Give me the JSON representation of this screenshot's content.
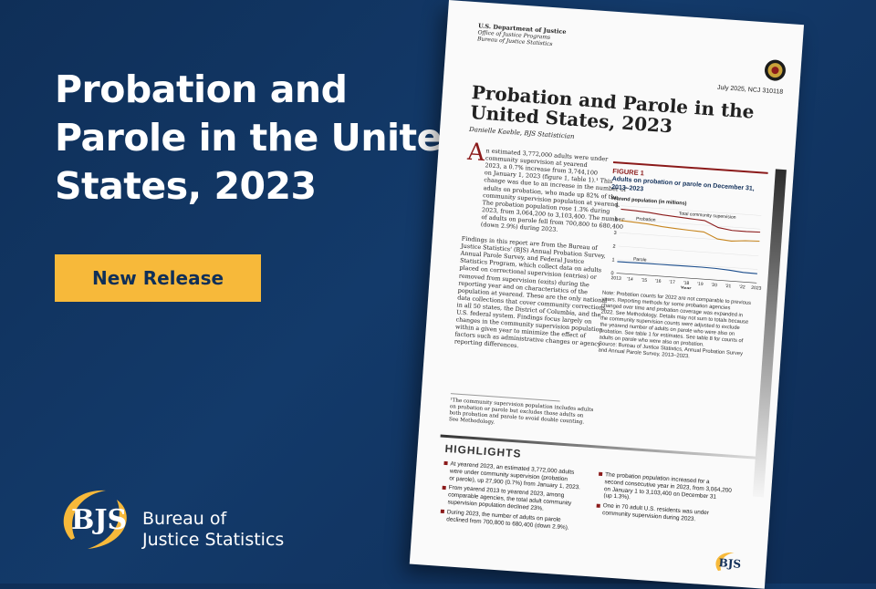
{
  "banner": {
    "headline_lines": [
      "Probation and",
      "Parole in the United",
      "States, 2023"
    ],
    "button_label": "New Release",
    "logo_text": "BJS",
    "logo_name_lines": [
      "Bureau of",
      "Justice Statistics"
    ]
  },
  "document": {
    "agency": "U.S. Department of Justice",
    "agency_sub": "Office of Justice Programs",
    "agency_sub2": "Bureau of Justice Statistics",
    "date_code": "July 2025, NCJ 310118",
    "title_lines": [
      "Probation and Parole in the",
      "United States, 2023"
    ],
    "author": "Danielle Kaeble, BJS Statistician",
    "dropcap": "A",
    "intro_lines": [
      "n estimated 3,772,000 adults were under",
      "community supervision at yearend",
      "2023, a 0.7% increase from 3,744,100",
      "on January 1, 2023 (figure 1, table 1).¹ This",
      "change was due to an increase in the number of",
      "adults on probation, who made up 82% of the",
      "community supervision population at yearend.",
      "The probation population rose 1.3% during",
      "2023, from 3,064,200 to 3,103,400. The number",
      "of adults on parole fell from 700,800 to 680,400",
      "(down 2.9%) during 2023."
    ],
    "findings_lines": [
      "Findings in this report are from the Bureau of",
      "Justice Statistics' (BJS) Annual Probation Survey,",
      "Annual Parole Survey, and Federal Justice",
      "Statistics Program, which collect data on adults",
      "placed on correctional supervision (entries) or",
      "removed from supervision (exits) during the",
      "reporting year and on characteristics of the",
      "population at yearend. These are the only national",
      "data collections that cover community corrections",
      "in all 50 states, the District of Columbia, and the",
      "U.S. federal system. Findings focus largely on",
      "changes in the community supervision population",
      "within a given year to minimize the effect of",
      "factors such as administrative changes or agency",
      "reporting differences."
    ],
    "footnote_lines": [
      "¹The community supervision population includes adults",
      "on probation or parole but excludes those adults on",
      "both probation and parole to avoid double counting.",
      "See Methodology."
    ],
    "figure_label": "FIGURE 1",
    "figure_title_lines": [
      "Adults on probation or parole on December 31,",
      "2013–2023"
    ],
    "note_lines": [
      "Note: Probation counts for 2022 are not comparable to previous",
      "years. Reporting methods for some probation agencies",
      "changed over time and probation coverage was expanded in",
      "2022. See Methodology. Details may not sum to totals because",
      "the community supervision counts were adjusted to exclude",
      "the yearend number of adults on parole who were also on",
      "probation. See table 1 for estimates. See table 8 for counts of",
      "adults on parole who were also on probation.",
      "Source: Bureau of Justice Statistics, Annual Probation Survey",
      "and Annual Parole Survey, 2013–2023."
    ],
    "highlights_title": "HIGHLIGHTS",
    "highlights_left": [
      [
        "At yearend 2023, an estimated 3,772,000 adults",
        "were under community supervision (probation",
        "or parole), up 27,900 (0.7%) from January 1, 2023."
      ],
      [
        "From yearend 2013 to yearend 2023, among",
        "comparable agencies, the total adult community",
        "supervision population declined 23%."
      ],
      [
        "During 2023, the number of adults on parole",
        "declined from 700,800 to 680,400 (down 2.9%)."
      ]
    ],
    "highlights_right": [
      [
        "The probation population increased for a",
        "second consecutive year in 2023, from 3,064,200",
        "on January 1 to 3,103,400 on December 31",
        "(up 1.3%)."
      ],
      [
        "One in 70 adult U.S. residents was under",
        "community supervision during 2023."
      ]
    ],
    "small_logo_text": "BJS"
  },
  "chart_data": {
    "type": "line",
    "title": "",
    "ylabel": "Yearend population (in millions)",
    "xlabel": "Year",
    "x": [
      "2013",
      "'14",
      "'15",
      "'16",
      "'17",
      "'18",
      "'19",
      "'20",
      "'21",
      "'22",
      "2023"
    ],
    "yticks": [
      "0",
      "1",
      "2",
      "3",
      "4",
      "5"
    ],
    "ylim": [
      0,
      5
    ],
    "series": [
      {
        "name": "Total community supervision",
        "color": "#8b1a1a",
        "values": [
          4.75,
          4.71,
          4.65,
          4.54,
          4.47,
          4.4,
          4.34,
          3.89,
          3.75,
          3.74,
          3.77
        ]
      },
      {
        "name": "Probation",
        "color": "#c7851e",
        "values": [
          3.91,
          3.86,
          3.79,
          3.67,
          3.6,
          3.54,
          3.49,
          3.05,
          2.96,
          3.06,
          3.1
        ]
      },
      {
        "name": "Parole",
        "color": "#1a4c8b",
        "values": [
          0.85,
          0.86,
          0.87,
          0.87,
          0.87,
          0.88,
          0.88,
          0.86,
          0.8,
          0.7,
          0.68
        ]
      }
    ]
  }
}
